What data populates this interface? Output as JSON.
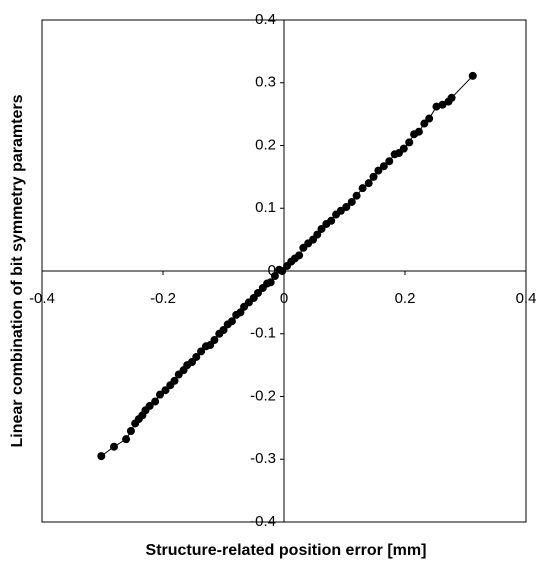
{
  "chart_data": {
    "type": "line",
    "x_label": "Structure-related position error [mm]",
    "y_label": "Linear combination of bit symmetry paramters",
    "x": [
      -0.302,
      -0.281,
      -0.261,
      -0.253,
      -0.246,
      -0.24,
      -0.234,
      -0.229,
      -0.222,
      -0.213,
      -0.205,
      -0.196,
      -0.188,
      -0.181,
      -0.174,
      -0.166,
      -0.16,
      -0.152,
      -0.145,
      -0.137,
      -0.129,
      -0.122,
      -0.115,
      -0.107,
      -0.1,
      -0.093,
      -0.086,
      -0.079,
      -0.072,
      -0.066,
      -0.058,
      -0.05,
      -0.043,
      -0.035,
      -0.028,
      -0.022,
      -0.015,
      -0.008,
      -0.003,
      0.005,
      0.012,
      0.018,
      0.025,
      0.032,
      0.04,
      0.048,
      0.055,
      0.062,
      0.07,
      0.078,
      0.086,
      0.094,
      0.103,
      0.112,
      0.12,
      0.13,
      0.14,
      0.148,
      0.156,
      0.165,
      0.174,
      0.183,
      0.19,
      0.198,
      0.207,
      0.215,
      0.223,
      0.232,
      0.24,
      0.252,
      0.262,
      0.272,
      0.277,
      0.312
    ],
    "series": [
      {
        "color": "#000000",
        "markers": true,
        "values": [
          -0.295,
          -0.28,
          -0.268,
          -0.255,
          -0.243,
          -0.236,
          -0.23,
          -0.222,
          -0.215,
          -0.208,
          -0.197,
          -0.19,
          -0.182,
          -0.175,
          -0.165,
          -0.158,
          -0.15,
          -0.145,
          -0.137,
          -0.128,
          -0.12,
          -0.118,
          -0.11,
          -0.1,
          -0.094,
          -0.085,
          -0.08,
          -0.07,
          -0.066,
          -0.057,
          -0.05,
          -0.043,
          -0.035,
          -0.027,
          -0.02,
          -0.018,
          -0.008,
          0.002,
          0.0,
          0.008,
          0.015,
          0.02,
          0.025,
          0.037,
          0.044,
          0.05,
          0.058,
          0.067,
          0.075,
          0.08,
          0.09,
          0.096,
          0.102,
          0.11,
          0.12,
          0.132,
          0.14,
          0.15,
          0.16,
          0.167,
          0.175,
          0.186,
          0.188,
          0.195,
          0.205,
          0.218,
          0.222,
          0.235,
          0.243,
          0.262,
          0.265,
          0.27,
          0.276,
          0.311
        ]
      }
    ],
    "xlim": [
      -0.4,
      0.4
    ],
    "ylim": [
      -0.4,
      0.4
    ],
    "xticks": [
      -0.4,
      -0.2,
      0,
      0.2,
      0.4
    ],
    "yticks": [
      -0.4,
      -0.3,
      -0.2,
      -0.1,
      0,
      0.1,
      0.2,
      0.3,
      0.4
    ],
    "grid": false
  }
}
